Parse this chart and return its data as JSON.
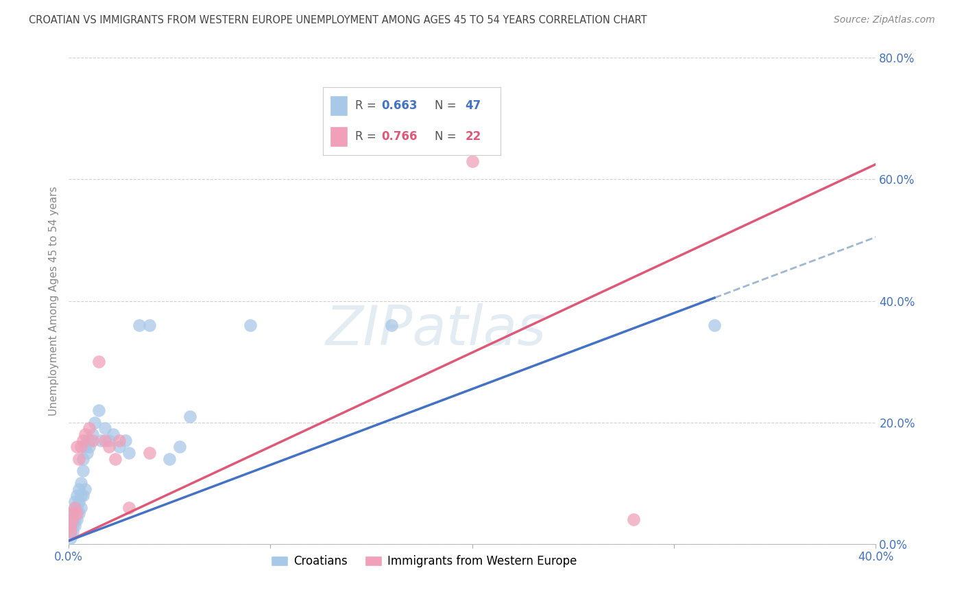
{
  "title": "CROATIAN VS IMMIGRANTS FROM WESTERN EUROPE UNEMPLOYMENT AMONG AGES 45 TO 54 YEARS CORRELATION CHART",
  "source": "Source: ZipAtlas.com",
  "ylabel": "Unemployment Among Ages 45 to 54 years",
  "xmin": 0.0,
  "xmax": 0.4,
  "ymin": 0.0,
  "ymax": 0.8,
  "yticks": [
    0.0,
    0.2,
    0.4,
    0.6,
    0.8
  ],
  "ytick_labels": [
    "0.0%",
    "20.0%",
    "40.0%",
    "60.0%",
    "80.0%"
  ],
  "xtick_labels": [
    "0.0%",
    "",
    "",
    "",
    "40.0%"
  ],
  "xticks": [
    0.0,
    0.1,
    0.2,
    0.3,
    0.4
  ],
  "croatians_color": "#a8c8e8",
  "immigrants_color": "#f0a0b8",
  "croatians_label": "Croatians",
  "immigrants_label": "Immigrants from Western Europe",
  "legend_color_blue": "#4472c4",
  "legend_color_pink": "#e05878",
  "trend_blue_color": "#4472c4",
  "trend_pink_color": "#e05878",
  "trend_dashed_color": "#a0b8d0",
  "background_color": "#ffffff",
  "grid_color": "#d0d0d0",
  "tick_label_color": "#4472c4",
  "croatians_x": [
    0.001,
    0.001,
    0.001,
    0.002,
    0.002,
    0.002,
    0.002,
    0.003,
    0.003,
    0.003,
    0.003,
    0.004,
    0.004,
    0.004,
    0.005,
    0.005,
    0.005,
    0.006,
    0.006,
    0.006,
    0.007,
    0.007,
    0.007,
    0.008,
    0.008,
    0.009,
    0.009,
    0.01,
    0.01,
    0.012,
    0.013,
    0.015,
    0.016,
    0.018,
    0.02,
    0.022,
    0.025,
    0.028,
    0.03,
    0.035,
    0.04,
    0.05,
    0.055,
    0.06,
    0.09,
    0.16,
    0.32
  ],
  "croatians_y": [
    0.01,
    0.02,
    0.03,
    0.02,
    0.03,
    0.04,
    0.05,
    0.03,
    0.04,
    0.06,
    0.07,
    0.04,
    0.06,
    0.08,
    0.05,
    0.07,
    0.09,
    0.06,
    0.08,
    0.1,
    0.08,
    0.12,
    0.14,
    0.09,
    0.16,
    0.15,
    0.17,
    0.16,
    0.17,
    0.18,
    0.2,
    0.22,
    0.17,
    0.19,
    0.17,
    0.18,
    0.16,
    0.17,
    0.15,
    0.36,
    0.36,
    0.14,
    0.16,
    0.21,
    0.36,
    0.36,
    0.36
  ],
  "immigrants_x": [
    0.001,
    0.001,
    0.002,
    0.002,
    0.003,
    0.004,
    0.004,
    0.005,
    0.006,
    0.007,
    0.008,
    0.01,
    0.012,
    0.015,
    0.018,
    0.02,
    0.023,
    0.025,
    0.03,
    0.04,
    0.2,
    0.28
  ],
  "immigrants_y": [
    0.02,
    0.03,
    0.04,
    0.05,
    0.06,
    0.05,
    0.16,
    0.14,
    0.16,
    0.17,
    0.18,
    0.19,
    0.17,
    0.3,
    0.17,
    0.16,
    0.14,
    0.17,
    0.06,
    0.15,
    0.63,
    0.04
  ],
  "trend_blue_x_end": 0.32,
  "trend_dashed_x_start": 0.1,
  "trend_dashed_x_end": 0.4,
  "watermark_text": "ZIPatlas",
  "watermark_color": "#c8d8e8",
  "watermark_alpha": 0.5
}
